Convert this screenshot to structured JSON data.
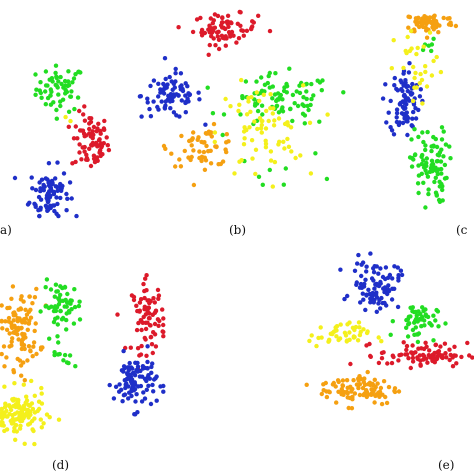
{
  "colors": {
    "blue": "#1f2fc8",
    "red": "#dc1a2a",
    "green": "#22dd22",
    "orange": "#f5a011",
    "yellow": "#f4f01c"
  },
  "chart_data": [
    {
      "type": "scatter",
      "panel_label": "a)",
      "series": [
        {
          "color": "green",
          "clusters": [
            {
              "cx": 0.55,
              "cy": 0.68,
              "sx": 0.22,
              "sy": 0.12,
              "n": 60
            }
          ]
        },
        {
          "color": "red",
          "clusters": [
            {
              "cx": 0.82,
              "cy": 0.4,
              "sx": 0.17,
              "sy": 0.15,
              "n": 75
            }
          ]
        },
        {
          "color": "blue",
          "clusters": [
            {
              "cx": 0.45,
              "cy": 0.13,
              "sx": 0.18,
              "sy": 0.14,
              "n": 85
            }
          ]
        },
        {
          "color": "yellow",
          "clusters": [
            {
              "cx": 0.6,
              "cy": 0.55,
              "sx": 0.05,
              "sy": 0.05,
              "n": 2
            }
          ]
        }
      ]
    },
    {
      "type": "scatter",
      "panel_label": "(b)",
      "series": [
        {
          "color": "red",
          "clusters": [
            {
              "cx": 0.42,
              "cy": 0.9,
              "sx": 0.15,
              "sy": 0.08,
              "n": 75
            }
          ]
        },
        {
          "color": "blue",
          "clusters": [
            {
              "cx": 0.17,
              "cy": 0.55,
              "sx": 0.14,
              "sy": 0.12,
              "n": 80
            }
          ]
        },
        {
          "color": "green",
          "clusters": [
            {
              "cx": 0.68,
              "cy": 0.52,
              "sx": 0.24,
              "sy": 0.14,
              "n": 90
            },
            {
              "cx": 0.7,
              "cy": 0.15,
              "sx": 0.25,
              "sy": 0.1,
              "n": 8
            }
          ]
        },
        {
          "color": "orange",
          "clusters": [
            {
              "cx": 0.32,
              "cy": 0.28,
              "sx": 0.16,
              "sy": 0.1,
              "n": 55
            }
          ]
        },
        {
          "color": "yellow",
          "clusters": [
            {
              "cx": 0.58,
              "cy": 0.35,
              "sx": 0.2,
              "sy": 0.25,
              "n": 70
            }
          ]
        }
      ]
    },
    {
      "type": "scatter",
      "panel_label": "(c",
      "series": [
        {
          "color": "orange",
          "clusters": [
            {
              "cx": 0.55,
              "cy": 0.93,
              "sx": 0.25,
              "sy": 0.05,
              "n": 70
            }
          ]
        },
        {
          "color": "blue",
          "clusters": [
            {
              "cx": 0.3,
              "cy": 0.55,
              "sx": 0.15,
              "sy": 0.16,
              "n": 90
            }
          ]
        },
        {
          "color": "green",
          "clusters": [
            {
              "cx": 0.55,
              "cy": 0.25,
              "sx": 0.18,
              "sy": 0.18,
              "n": 90
            },
            {
              "cx": 0.55,
              "cy": 0.8,
              "sx": 0.1,
              "sy": 0.05,
              "n": 6
            }
          ]
        },
        {
          "color": "yellow",
          "clusters": [
            {
              "cx": 0.45,
              "cy": 0.7,
              "sx": 0.25,
              "sy": 0.2,
              "n": 30
            }
          ]
        }
      ]
    },
    {
      "type": "scatter",
      "panel_label": "(d)",
      "series": [
        {
          "color": "orange",
          "clusters": [
            {
              "cx": 0.12,
              "cy": 0.62,
              "sx": 0.12,
              "sy": 0.2,
              "n": 110
            }
          ]
        },
        {
          "color": "green",
          "clusters": [
            {
              "cx": 0.38,
              "cy": 0.74,
              "sx": 0.12,
              "sy": 0.12,
              "n": 60
            },
            {
              "cx": 0.4,
              "cy": 0.46,
              "sx": 0.1,
              "sy": 0.04,
              "n": 10
            }
          ]
        },
        {
          "color": "red",
          "clusters": [
            {
              "cx": 0.9,
              "cy": 0.68,
              "sx": 0.1,
              "sy": 0.18,
              "n": 80
            }
          ]
        },
        {
          "color": "blue",
          "clusters": [
            {
              "cx": 0.82,
              "cy": 0.35,
              "sx": 0.13,
              "sy": 0.14,
              "n": 100
            }
          ]
        },
        {
          "color": "yellow",
          "clusters": [
            {
              "cx": 0.12,
              "cy": 0.18,
              "sx": 0.16,
              "sy": 0.12,
              "n": 120
            }
          ]
        }
      ]
    },
    {
      "type": "scatter",
      "panel_label": "(e)",
      "series": [
        {
          "color": "blue",
          "clusters": [
            {
              "cx": 0.42,
              "cy": 0.8,
              "sx": 0.14,
              "sy": 0.12,
              "n": 90
            }
          ]
        },
        {
          "color": "green",
          "clusters": [
            {
              "cx": 0.66,
              "cy": 0.62,
              "sx": 0.12,
              "sy": 0.09,
              "n": 55
            }
          ]
        },
        {
          "color": "yellow",
          "clusters": [
            {
              "cx": 0.2,
              "cy": 0.55,
              "sx": 0.18,
              "sy": 0.06,
              "n": 45
            }
          ]
        },
        {
          "color": "red",
          "clusters": [
            {
              "cx": 0.7,
              "cy": 0.45,
              "sx": 0.26,
              "sy": 0.06,
              "n": 85
            }
          ]
        },
        {
          "color": "orange",
          "clusters": [
            {
              "cx": 0.32,
              "cy": 0.28,
              "sx": 0.24,
              "sy": 0.08,
              "n": 95
            }
          ]
        }
      ]
    }
  ]
}
